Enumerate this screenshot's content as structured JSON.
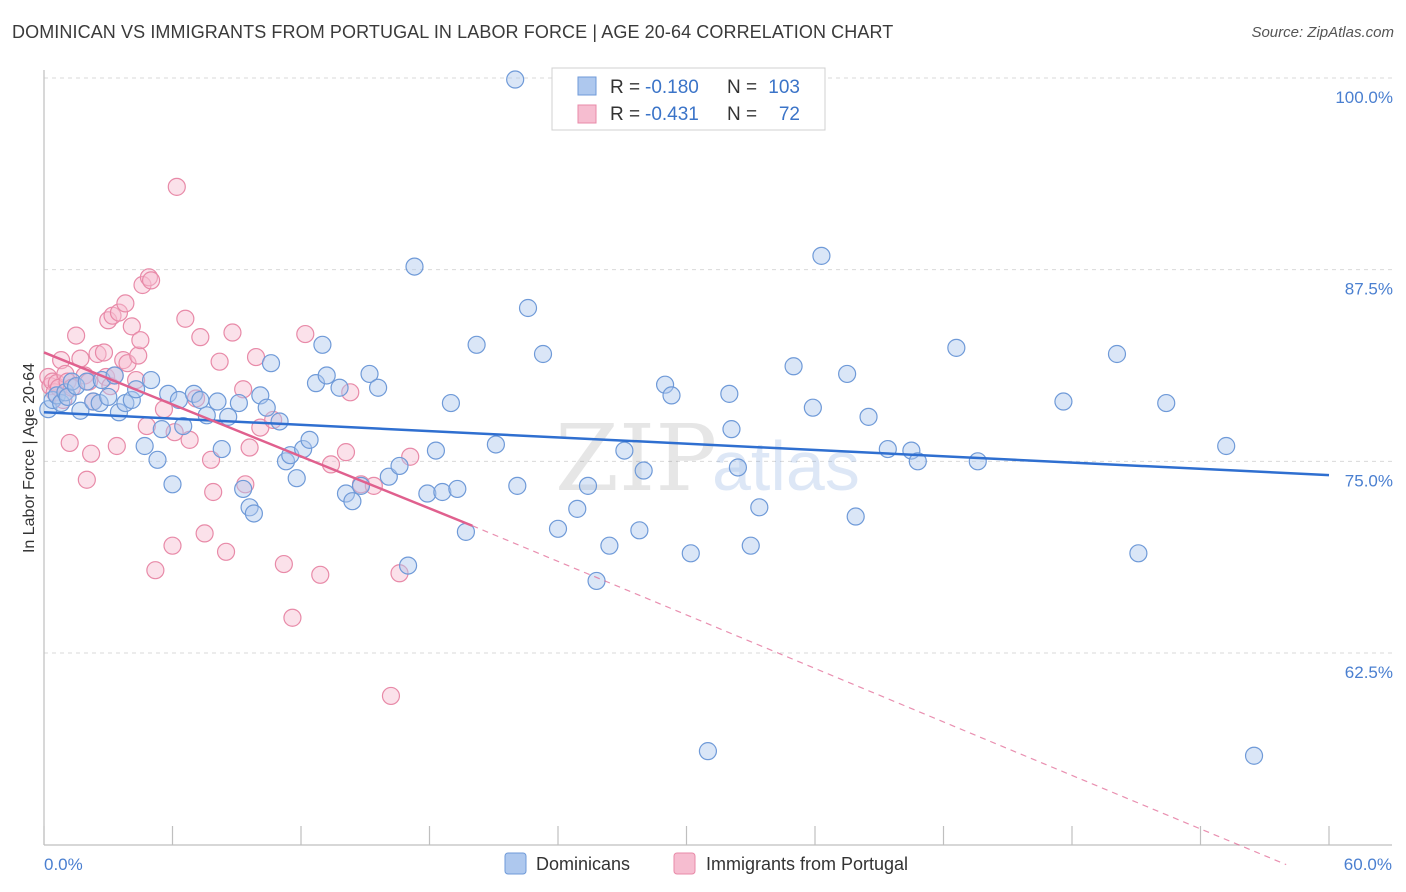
{
  "title": "DOMINICAN VS IMMIGRANTS FROM PORTUGAL IN LABOR FORCE | AGE 20-64 CORRELATION CHART",
  "source": "Source: ZipAtlas.com",
  "watermark": {
    "zip": "ZIP",
    "atlas": "atlas"
  },
  "legend_top": [
    {
      "r_label": "R =",
      "r_value": "-0.180",
      "n_label": "N =",
      "n_value": "103"
    },
    {
      "r_label": "R =",
      "r_value": "-0.431",
      "n_label": "N =",
      "n_value": "72"
    }
  ],
  "colors": {
    "blue_fill": "#aec8ee",
    "blue_stroke": "#6f9ad8",
    "blue_line": "#2f6fd0",
    "pink_fill": "#f6bdd0",
    "pink_stroke": "#e88aa8",
    "pink_line": "#e0608e",
    "grid": "#d9d9d9",
    "tick_text": "#4a7fd0"
  },
  "chart_data": {
    "type": "scatter",
    "title": "DOMINICAN VS IMMIGRANTS FROM PORTUGAL IN LABOR FORCE | AGE 20-64 CORRELATION CHART",
    "xlabel": "",
    "ylabel": "In Labor Force | Age 20-64",
    "xlim": [
      0,
      60
    ],
    "ylim": [
      52.5,
      101.5
    ],
    "x_tick_labels": [
      "0.0%",
      "60.0%"
    ],
    "y_ticks": [
      62.5,
      75.0,
      87.5,
      100.0
    ],
    "y_tick_labels": [
      "62.5%",
      "75.0%",
      "87.5%",
      "100.0%"
    ],
    "grid": true,
    "legend_position": "top-center",
    "series": [
      {
        "name": "Dominicans",
        "trend": {
          "x0": 0,
          "y0": 78.2,
          "x1": 60,
          "y1": 74.1
        },
        "points": [
          [
            0.2,
            78.4
          ],
          [
            0.4,
            79.0
          ],
          [
            0.6,
            79.3
          ],
          [
            0.8,
            78.8
          ],
          [
            1.0,
            79.5
          ],
          [
            1.1,
            79.2
          ],
          [
            1.3,
            80.2
          ],
          [
            1.5,
            79.9
          ],
          [
            1.7,
            78.3
          ],
          [
            2.0,
            80.2
          ],
          [
            2.3,
            78.9
          ],
          [
            2.6,
            78.8
          ],
          [
            2.7,
            80.3
          ],
          [
            3.0,
            79.2
          ],
          [
            3.3,
            80.6
          ],
          [
            3.5,
            78.2
          ],
          [
            3.8,
            78.8
          ],
          [
            4.1,
            79.0
          ],
          [
            4.3,
            79.7
          ],
          [
            4.7,
            76.0
          ],
          [
            5.0,
            80.3
          ],
          [
            5.3,
            75.1
          ],
          [
            5.5,
            77.1
          ],
          [
            5.8,
            79.4
          ],
          [
            6.0,
            73.5
          ],
          [
            6.3,
            79.0
          ],
          [
            6.5,
            77.3
          ],
          [
            7.0,
            79.4
          ],
          [
            7.3,
            79.0
          ],
          [
            7.6,
            78.0
          ],
          [
            8.1,
            78.9
          ],
          [
            8.3,
            75.8
          ],
          [
            8.6,
            77.9
          ],
          [
            9.1,
            78.8
          ],
          [
            9.3,
            73.2
          ],
          [
            9.6,
            72.0
          ],
          [
            9.8,
            71.6
          ],
          [
            10.1,
            79.3
          ],
          [
            10.4,
            78.5
          ],
          [
            10.6,
            81.4
          ],
          [
            11.0,
            77.6
          ],
          [
            11.3,
            75.0
          ],
          [
            11.5,
            75.4
          ],
          [
            11.8,
            73.9
          ],
          [
            12.1,
            75.8
          ],
          [
            12.4,
            76.4
          ],
          [
            12.7,
            80.1
          ],
          [
            13.0,
            82.6
          ],
          [
            13.2,
            80.6
          ],
          [
            13.8,
            79.8
          ],
          [
            14.1,
            72.9
          ],
          [
            14.4,
            72.4
          ],
          [
            14.8,
            73.4
          ],
          [
            15.2,
            80.7
          ],
          [
            15.6,
            79.8
          ],
          [
            16.1,
            74.0
          ],
          [
            16.6,
            74.7
          ],
          [
            17.0,
            68.2
          ],
          [
            17.3,
            87.7
          ],
          [
            17.9,
            72.9
          ],
          [
            18.3,
            75.7
          ],
          [
            18.6,
            73.0
          ],
          [
            19.0,
            78.8
          ],
          [
            19.3,
            73.2
          ],
          [
            19.7,
            70.4
          ],
          [
            20.2,
            82.6
          ],
          [
            21.1,
            76.1
          ],
          [
            22.0,
            99.9
          ],
          [
            22.1,
            73.4
          ],
          [
            22.6,
            85.0
          ],
          [
            23.3,
            82.0
          ],
          [
            24.0,
            70.6
          ],
          [
            24.9,
            71.9
          ],
          [
            25.4,
            73.4
          ],
          [
            25.8,
            67.2
          ],
          [
            26.4,
            69.5
          ],
          [
            27.1,
            75.7
          ],
          [
            27.8,
            70.5
          ],
          [
            28.0,
            74.4
          ],
          [
            29.0,
            80.0
          ],
          [
            29.3,
            79.3
          ],
          [
            30.2,
            69.0
          ],
          [
            31.0,
            56.1
          ],
          [
            32.0,
            79.4
          ],
          [
            32.1,
            77.1
          ],
          [
            32.4,
            74.6
          ],
          [
            33.0,
            69.5
          ],
          [
            33.4,
            72.0
          ],
          [
            35.0,
            81.2
          ],
          [
            35.9,
            78.5
          ],
          [
            36.3,
            88.4
          ],
          [
            37.5,
            80.7
          ],
          [
            37.9,
            71.4
          ],
          [
            38.5,
            77.9
          ],
          [
            39.4,
            75.8
          ],
          [
            40.5,
            75.7
          ],
          [
            40.8,
            75.0
          ],
          [
            42.6,
            82.4
          ],
          [
            43.6,
            75.0
          ],
          [
            47.6,
            78.9
          ],
          [
            50.1,
            82.0
          ],
          [
            51.1,
            69.0
          ],
          [
            52.4,
            78.8
          ],
          [
            55.2,
            76.0
          ],
          [
            56.5,
            55.8
          ]
        ]
      },
      {
        "name": "Immigrants from Portugal",
        "trend": {
          "x0": 0,
          "y0": 82.1,
          "x1": 20,
          "y1": 70.8,
          "dash_x1": 58,
          "dash_y1": 48.7
        },
        "points": [
          [
            0.2,
            80.5
          ],
          [
            0.3,
            79.9
          ],
          [
            0.4,
            80.2
          ],
          [
            0.5,
            79.5
          ],
          [
            0.6,
            80.1
          ],
          [
            0.7,
            79.8
          ],
          [
            0.8,
            81.6
          ],
          [
            0.9,
            79.0
          ],
          [
            1.0,
            80.7
          ],
          [
            1.1,
            80.2
          ],
          [
            1.2,
            76.2
          ],
          [
            1.3,
            79.8
          ],
          [
            1.5,
            83.2
          ],
          [
            1.7,
            81.7
          ],
          [
            1.9,
            80.6
          ],
          [
            2.0,
            73.8
          ],
          [
            2.1,
            80.2
          ],
          [
            2.2,
            75.5
          ],
          [
            2.3,
            78.9
          ],
          [
            2.5,
            82.0
          ],
          [
            2.8,
            82.1
          ],
          [
            2.9,
            80.5
          ],
          [
            3.0,
            84.2
          ],
          [
            3.1,
            79.9
          ],
          [
            3.2,
            84.5
          ],
          [
            3.3,
            80.6
          ],
          [
            3.4,
            76.0
          ],
          [
            3.5,
            84.7
          ],
          [
            3.7,
            81.6
          ],
          [
            3.8,
            85.3
          ],
          [
            3.9,
            81.4
          ],
          [
            4.1,
            83.8
          ],
          [
            4.3,
            80.3
          ],
          [
            4.4,
            81.9
          ],
          [
            4.5,
            82.9
          ],
          [
            4.6,
            86.5
          ],
          [
            4.8,
            77.3
          ],
          [
            4.9,
            87.0
          ],
          [
            5.0,
            86.8
          ],
          [
            5.2,
            67.9
          ],
          [
            5.6,
            78.4
          ],
          [
            6.0,
            69.5
          ],
          [
            6.1,
            76.9
          ],
          [
            6.2,
            92.9
          ],
          [
            6.6,
            84.3
          ],
          [
            6.8,
            76.4
          ],
          [
            7.1,
            79.1
          ],
          [
            7.3,
            83.1
          ],
          [
            7.5,
            70.3
          ],
          [
            7.8,
            75.1
          ],
          [
            7.9,
            73.0
          ],
          [
            8.2,
            81.5
          ],
          [
            8.5,
            69.1
          ],
          [
            8.8,
            83.4
          ],
          [
            9.3,
            79.7
          ],
          [
            9.4,
            73.5
          ],
          [
            9.6,
            75.9
          ],
          [
            9.9,
            81.8
          ],
          [
            10.1,
            77.2
          ],
          [
            10.7,
            77.7
          ],
          [
            11.2,
            68.3
          ],
          [
            11.6,
            64.8
          ],
          [
            12.2,
            83.3
          ],
          [
            12.9,
            67.6
          ],
          [
            13.4,
            74.8
          ],
          [
            14.1,
            75.6
          ],
          [
            14.3,
            79.5
          ],
          [
            14.8,
            73.5
          ],
          [
            15.4,
            73.4
          ],
          [
            16.2,
            59.7
          ],
          [
            16.6,
            67.7
          ],
          [
            17.1,
            75.3
          ]
        ]
      }
    ]
  },
  "bottom_legend": [
    "Dominicans",
    "Immigrants from Portugal"
  ]
}
